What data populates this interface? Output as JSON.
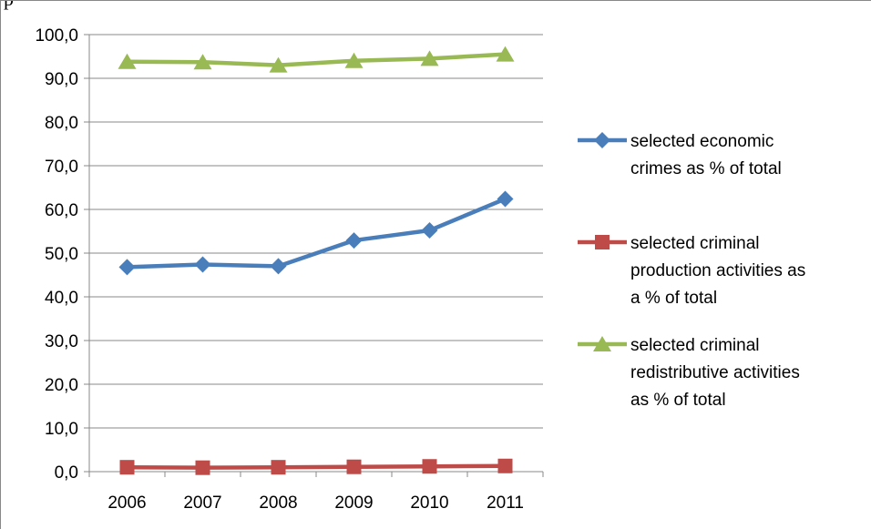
{
  "page": {
    "corner_text": "p"
  },
  "chart_data": {
    "type": "line",
    "categories": [
      "2006",
      "2007",
      "2008",
      "2009",
      "2010",
      "2011"
    ],
    "y_ticks": [
      "0,0",
      "10,0",
      "20,0",
      "30,0",
      "40,0",
      "50,0",
      "60,0",
      "70,0",
      "80,0",
      "90,0",
      "100,0"
    ],
    "ylim": [
      0,
      100
    ],
    "grid": "horizontal",
    "legend_position": "right",
    "series": [
      {
        "name": "selected economic crimes as % of total",
        "legend_lines": [
          "selected economic",
          "crimes as % of total"
        ],
        "values": [
          46.8,
          47.4,
          47.0,
          52.9,
          55.2,
          62.4
        ],
        "color": "#4a7ebb",
        "marker": "diamond"
      },
      {
        "name": "selected criminal production activities as a % of total",
        "legend_lines": [
          "selected criminal",
          "production activities as",
          "a % of total"
        ],
        "values": [
          1.0,
          0.9,
          1.0,
          1.1,
          1.2,
          1.3
        ],
        "color": "#be4b48",
        "marker": "square"
      },
      {
        "name": "selected criminal redistributive activities as % of total",
        "legend_lines": [
          "selected criminal",
          "redistributive activities",
          "as % of total"
        ],
        "values": [
          93.8,
          93.7,
          93.0,
          94.0,
          94.5,
          95.5
        ],
        "color": "#98b954",
        "marker": "triangle"
      }
    ]
  }
}
